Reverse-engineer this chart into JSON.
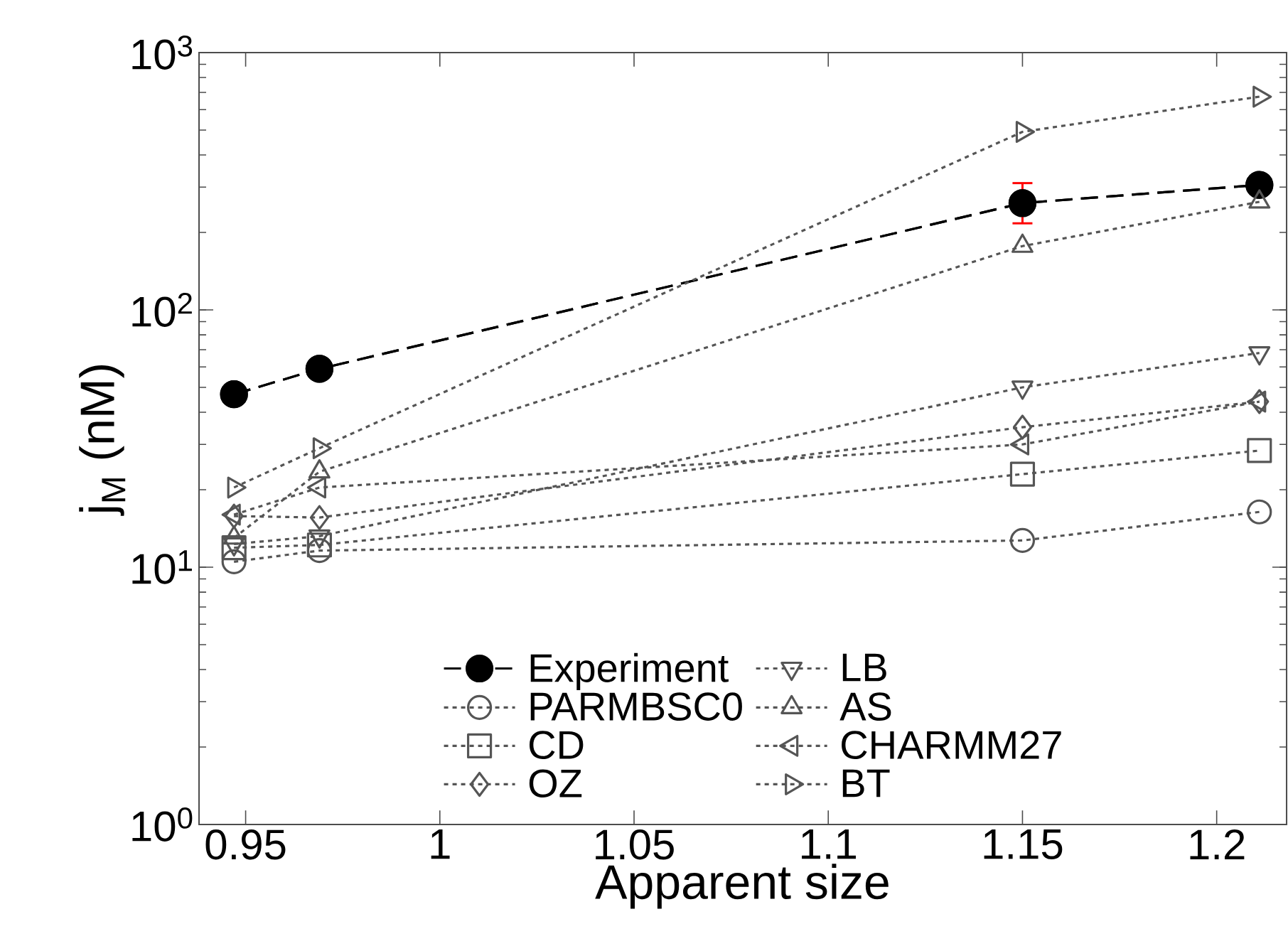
{
  "chart_data": {
    "type": "line",
    "xlabel": "Apparent size",
    "ylabel": "j$_{M}$ (nM)",
    "log": "y",
    "legend": "bottom right",
    "grid": false,
    "x": [
      0.947,
      0.969,
      1.15,
      1.211
    ],
    "xlim": [
      0.938,
      1.218
    ],
    "ylim": [
      1,
      1000
    ],
    "xticks": [
      0.95,
      1,
      1.05,
      1.1,
      1.15,
      1.2
    ],
    "yticks": [
      {
        "value": 1,
        "label": "10$^{0}$"
      },
      {
        "value": 10,
        "label": "10$^{1}$"
      },
      {
        "value": 100,
        "label": "10$^{2}$"
      },
      {
        "value": 1000,
        "label": "10$^{3}$"
      }
    ],
    "series": [
      {
        "name": "Experiment",
        "color": "#000000",
        "marker": "circle",
        "line_style": "dashed",
        "values": [
          47,
          59,
          260,
          306
        ],
        "errors": [
          null,
          null,
          [
            217,
            311
          ],
          null
        ]
      },
      {
        "name": "PARMBSC0",
        "color": "#555555",
        "marker": "circle-open",
        "line_style": "dotted",
        "values": [
          10.5,
          11.6,
          12.7,
          16.4
        ]
      },
      {
        "name": "CD",
        "color": "#555555",
        "marker": "square",
        "line_style": "dotted",
        "values": [
          11.9,
          12.2,
          23,
          28.4
        ]
      },
      {
        "name": "OZ",
        "color": "#555555",
        "marker": "diamond",
        "line_style": "dotted",
        "values": [
          15.8,
          15.6,
          35,
          44
        ]
      },
      {
        "name": "LB",
        "color": "#555555",
        "marker": "triangle-down",
        "line_style": "dotted",
        "values": [
          12.3,
          13.2,
          50,
          68
        ]
      },
      {
        "name": "AS",
        "color": "#555555",
        "marker": "triangle",
        "line_style": "dotted",
        "values": [
          13,
          23.5,
          177,
          263
        ]
      },
      {
        "name": "CHARMM27",
        "color": "#555555",
        "marker": "triangle-left",
        "line_style": "dotted",
        "values": [
          16,
          20.4,
          30,
          44
        ]
      },
      {
        "name": "BT",
        "color": "#555555",
        "marker": "triangle-right",
        "line_style": "dotted",
        "values": [
          20.4,
          29,
          492,
          674
        ]
      }
    ]
  }
}
